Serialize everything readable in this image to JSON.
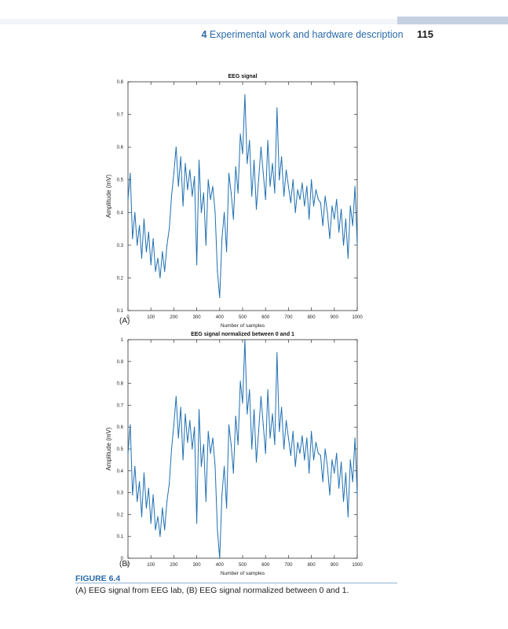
{
  "header": {
    "chapter_number": "4",
    "chapter_title": "Experimental work and hardware description",
    "page_number": "115"
  },
  "figure": {
    "label": "FIGURE 6.4",
    "caption": "(A) EEG signal from EEG lab, (B) EEG signal normalized between 0 and 1.",
    "panels": [
      "(A)",
      "(B)"
    ]
  },
  "colors": {
    "line": "#1f6fb2",
    "accent": "#2b6aa8"
  },
  "chart_data": [
    {
      "type": "line",
      "title": "EEG signal",
      "xlabel": "Number of samples",
      "ylabel": "Amplitude (mV)",
      "xlim": [
        0,
        1000
      ],
      "ylim": [
        0.1,
        0.8
      ],
      "xticks": [
        "0",
        "100",
        "200",
        "300",
        "400",
        "500",
        "600",
        "700",
        "800",
        "900",
        "1000"
      ],
      "yticks": [
        "0.1",
        "0.2",
        "0.3",
        "0.4",
        "0.5",
        "0.6",
        "0.7",
        "0.8"
      ],
      "grid": false,
      "x": [
        0,
        10,
        20,
        30,
        40,
        50,
        60,
        70,
        80,
        90,
        100,
        110,
        120,
        130,
        140,
        150,
        160,
        170,
        180,
        190,
        200,
        210,
        220,
        230,
        240,
        250,
        260,
        270,
        280,
        290,
        300,
        310,
        320,
        330,
        340,
        350,
        360,
        370,
        380,
        390,
        400,
        410,
        420,
        430,
        440,
        450,
        460,
        470,
        480,
        490,
        500,
        510,
        520,
        530,
        540,
        550,
        560,
        570,
        580,
        590,
        600,
        610,
        620,
        630,
        640,
        650,
        660,
        670,
        680,
        690,
        700,
        710,
        720,
        730,
        740,
        750,
        760,
        770,
        780,
        790,
        800,
        810,
        820,
        830,
        840,
        850,
        860,
        870,
        880,
        890,
        900,
        910,
        920,
        930,
        940,
        950,
        960,
        970,
        980,
        990,
        1000
      ],
      "y": [
        0.44,
        0.52,
        0.32,
        0.4,
        0.3,
        0.36,
        0.26,
        0.38,
        0.28,
        0.34,
        0.24,
        0.32,
        0.22,
        0.26,
        0.2,
        0.28,
        0.22,
        0.3,
        0.35,
        0.45,
        0.52,
        0.6,
        0.48,
        0.57,
        0.42,
        0.55,
        0.47,
        0.53,
        0.45,
        0.51,
        0.24,
        0.56,
        0.4,
        0.46,
        0.3,
        0.5,
        0.44,
        0.48,
        0.4,
        0.22,
        0.14,
        0.32,
        0.4,
        0.28,
        0.52,
        0.46,
        0.38,
        0.54,
        0.46,
        0.64,
        0.58,
        0.76,
        0.55,
        0.62,
        0.45,
        0.56,
        0.41,
        0.5,
        0.6,
        0.52,
        0.44,
        0.62,
        0.48,
        0.55,
        0.46,
        0.72,
        0.5,
        0.57,
        0.45,
        0.53,
        0.48,
        0.43,
        0.5,
        0.4,
        0.47,
        0.44,
        0.49,
        0.42,
        0.48,
        0.38,
        0.5,
        0.42,
        0.47,
        0.44,
        0.43,
        0.36,
        0.45,
        0.4,
        0.32,
        0.42,
        0.38,
        0.44,
        0.34,
        0.41,
        0.3,
        0.38,
        0.26,
        0.42,
        0.36,
        0.48,
        0.3
      ]
    },
    {
      "type": "line",
      "title": "EEG signal normalized between 0 and 1",
      "xlabel": "Number of samples",
      "ylabel": "Amplitude (mV)",
      "xlim": [
        0,
        1000
      ],
      "ylim": [
        0,
        1
      ],
      "xticks": [
        "0",
        "100",
        "200",
        "300",
        "400",
        "500",
        "600",
        "700",
        "800",
        "900",
        "1000"
      ],
      "yticks": [
        "0",
        "0.1",
        "0.2",
        "0.3",
        "0.4",
        "0.5",
        "0.6",
        "0.7",
        "0.8",
        "0.9",
        "1"
      ],
      "grid": false,
      "x": [
        0,
        10,
        20,
        30,
        40,
        50,
        60,
        70,
        80,
        90,
        100,
        110,
        120,
        130,
        140,
        150,
        160,
        170,
        180,
        190,
        200,
        210,
        220,
        230,
        240,
        250,
        260,
        270,
        280,
        290,
        300,
        310,
        320,
        330,
        340,
        350,
        360,
        370,
        380,
        390,
        400,
        410,
        420,
        430,
        440,
        450,
        460,
        470,
        480,
        490,
        500,
        510,
        520,
        530,
        540,
        550,
        560,
        570,
        580,
        590,
        600,
        610,
        620,
        630,
        640,
        650,
        660,
        670,
        680,
        690,
        700,
        710,
        720,
        730,
        740,
        750,
        760,
        770,
        780,
        790,
        800,
        810,
        820,
        830,
        840,
        850,
        860,
        870,
        880,
        890,
        900,
        910,
        920,
        930,
        940,
        950,
        960,
        970,
        980,
        990,
        1000
      ],
      "y": [
        0.48,
        0.61,
        0.29,
        0.42,
        0.26,
        0.35,
        0.19,
        0.39,
        0.23,
        0.32,
        0.16,
        0.29,
        0.13,
        0.19,
        0.1,
        0.23,
        0.13,
        0.26,
        0.34,
        0.5,
        0.61,
        0.74,
        0.55,
        0.69,
        0.45,
        0.66,
        0.53,
        0.63,
        0.5,
        0.6,
        0.16,
        0.68,
        0.42,
        0.52,
        0.26,
        0.58,
        0.48,
        0.55,
        0.42,
        0.13,
        0.0,
        0.29,
        0.42,
        0.23,
        0.61,
        0.52,
        0.39,
        0.65,
        0.52,
        0.81,
        0.71,
        1.0,
        0.66,
        0.77,
        0.5,
        0.68,
        0.44,
        0.58,
        0.74,
        0.61,
        0.48,
        0.77,
        0.55,
        0.66,
        0.52,
        0.94,
        0.58,
        0.69,
        0.5,
        0.63,
        0.55,
        0.47,
        0.58,
        0.42,
        0.53,
        0.48,
        0.56,
        0.45,
        0.55,
        0.39,
        0.58,
        0.45,
        0.53,
        0.48,
        0.47,
        0.35,
        0.5,
        0.42,
        0.29,
        0.45,
        0.39,
        0.48,
        0.32,
        0.44,
        0.26,
        0.39,
        0.19,
        0.45,
        0.35,
        0.55,
        0.29
      ]
    }
  ]
}
